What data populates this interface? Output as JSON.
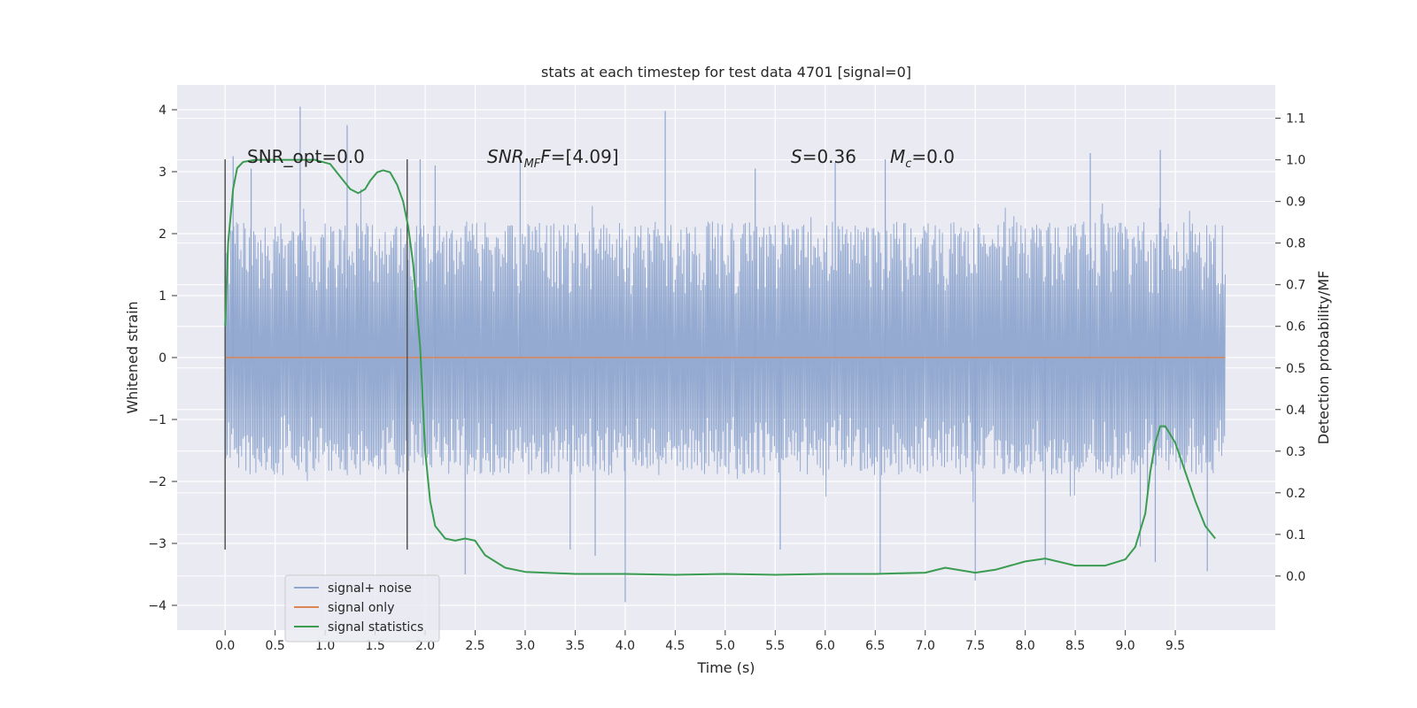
{
  "chart_data": {
    "type": "line",
    "title": "stats at each timestep for test data 4701 [signal=0]",
    "xlabel": "Time (s)",
    "ylabel": "Whitened strain",
    "ylabel_right": "Detection probability/MF",
    "xlim": [
      -0.48,
      10.5
    ],
    "ylim": [
      -4.4,
      4.4
    ],
    "ylim_right": [
      -0.13,
      1.18
    ],
    "x_ticks": [
      "0.0",
      "0.5",
      "1.0",
      "1.5",
      "2.0",
      "2.5",
      "3.0",
      "3.5",
      "4.0",
      "4.5",
      "5.0",
      "5.5",
      "6.0",
      "6.5",
      "7.0",
      "7.5",
      "8.0",
      "8.5",
      "9.0",
      "9.5"
    ],
    "y_ticks": [
      "4",
      "3",
      "2",
      "1",
      "0",
      "−1",
      "−2",
      "−3",
      "−4"
    ],
    "y_ticks_right": [
      "1.1",
      "1.0",
      "0.9",
      "0.8",
      "0.7",
      "0.6",
      "0.5",
      "0.4",
      "0.3",
      "0.2",
      "0.1",
      "0.0"
    ],
    "grid": true,
    "legend_position": "lower-left",
    "annotations": {
      "snr_opt": "SNR_opt=0.0",
      "snr_mf_main": "SNR",
      "snr_mf_sub": "MF",
      "snr_mf_value": "=[4.09]",
      "s_label": "S",
      "s_value": "=0.36",
      "mc_main": "M",
      "mc_sub": "c",
      "mc_value": "=0.0"
    },
    "vlines": [
      0.0,
      1.82
    ],
    "series": [
      {
        "name": "signal+ noise",
        "color": "#8fa6cf",
        "x_range": [
          0.0,
          10.0
        ],
        "typical_envelope": [
          -1.9,
          2.2
        ],
        "spikes": [
          [
            0.08,
            3.25
          ],
          [
            0.26,
            3.05
          ],
          [
            0.75,
            4.05
          ],
          [
            1.22,
            3.75
          ],
          [
            1.95,
            3.2
          ],
          [
            2.1,
            3.1
          ],
          [
            2.4,
            -3.5
          ],
          [
            2.95,
            3.3
          ],
          [
            3.45,
            -3.1
          ],
          [
            3.7,
            -3.2
          ],
          [
            4.0,
            -3.95
          ],
          [
            4.4,
            3.98
          ],
          [
            5.3,
            3.05
          ],
          [
            5.55,
            -3.1
          ],
          [
            6.1,
            3.15
          ],
          [
            6.55,
            -3.5
          ],
          [
            6.6,
            3.2
          ],
          [
            7.5,
            -3.6
          ],
          [
            8.2,
            -3.35
          ],
          [
            8.65,
            3.3
          ],
          [
            9.15,
            -3.05
          ],
          [
            9.3,
            -3.3
          ],
          [
            9.35,
            3.35
          ],
          [
            9.82,
            -3.45
          ]
        ]
      },
      {
        "name": "signal only",
        "color": "#dd8452",
        "x": [
          0.0,
          10.0
        ],
        "y": [
          0.0,
          0.0
        ]
      },
      {
        "name": "signal statistics",
        "color": "#3a9c51",
        "axis": "right",
        "x": [
          0.0,
          0.03,
          0.08,
          0.12,
          0.18,
          0.3,
          0.5,
          0.7,
          0.9,
          1.05,
          1.15,
          1.25,
          1.33,
          1.4,
          1.45,
          1.52,
          1.58,
          1.65,
          1.72,
          1.78,
          1.83,
          1.88,
          1.95,
          2.0,
          2.05,
          2.1,
          2.2,
          2.3,
          2.4,
          2.5,
          2.6,
          2.8,
          3.0,
          3.5,
          4.0,
          4.5,
          5.0,
          5.5,
          6.0,
          6.5,
          7.0,
          7.2,
          7.5,
          7.7,
          8.0,
          8.2,
          8.5,
          8.8,
          9.0,
          9.1,
          9.2,
          9.25,
          9.3,
          9.35,
          9.4,
          9.5,
          9.6,
          9.7,
          9.8,
          9.9
        ],
        "y": [
          0.6,
          0.8,
          0.93,
          0.98,
          0.995,
          1.0,
          1.0,
          1.0,
          1.0,
          0.99,
          0.96,
          0.93,
          0.92,
          0.93,
          0.95,
          0.97,
          0.975,
          0.97,
          0.94,
          0.9,
          0.84,
          0.75,
          0.55,
          0.3,
          0.18,
          0.12,
          0.09,
          0.085,
          0.09,
          0.085,
          0.05,
          0.02,
          0.01,
          0.005,
          0.005,
          0.003,
          0.005,
          0.003,
          0.005,
          0.005,
          0.008,
          0.02,
          0.008,
          0.015,
          0.035,
          0.042,
          0.025,
          0.025,
          0.04,
          0.07,
          0.15,
          0.25,
          0.32,
          0.36,
          0.36,
          0.32,
          0.25,
          0.18,
          0.12,
          0.09
        ]
      }
    ]
  }
}
